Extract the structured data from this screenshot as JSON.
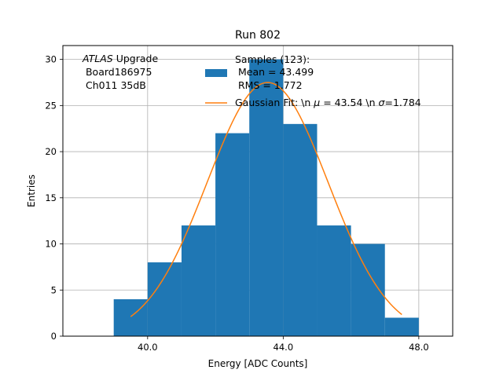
{
  "chart_data": {
    "type": "bar",
    "title": "Run 802",
    "xlabel": "Energy [ADC Counts]",
    "ylabel": "Entries",
    "xlim": [
      37.5,
      49.0
    ],
    "ylim": [
      0,
      31.5
    ],
    "grid": true,
    "x_ticks": [
      40.0,
      44.0,
      48.0
    ],
    "x_tick_labels": [
      "40.0",
      "44.0",
      "48.0"
    ],
    "y_ticks": [
      0,
      5,
      10,
      15,
      20,
      25,
      30
    ],
    "y_tick_labels": [
      "0",
      "5",
      "10",
      "15",
      "20",
      "25",
      "30"
    ],
    "bin_edges": [
      39,
      40,
      41,
      42,
      43,
      44,
      45,
      46,
      47,
      48
    ],
    "values": [
      4,
      8,
      12,
      22,
      30,
      23,
      12,
      10,
      2
    ],
    "histogram_color": "#1f77b4",
    "fit": {
      "mu": 43.54,
      "sigma": 1.784,
      "amplitude": 27.5,
      "x_range": [
        39.5,
        47.5
      ],
      "color": "#ff7f0e"
    },
    "annotation": {
      "line1_italic": "ATLAS",
      "line1_rest": " Upgrade",
      "line2": " Board186975",
      "line3": " Ch011 35dB"
    },
    "legend": {
      "placement": "top-center",
      "histogram_lines": [
        "Samples (123):",
        " Mean = 43.499",
        " RMS = 1.772"
      ],
      "fit_label_prefix": "Gaussian Fit: \\n ",
      "fit_label_mu": "μ",
      "fit_label_mid": " = 43.54 \\n ",
      "fit_label_sigma": "σ",
      "fit_label_end": "=1.784"
    }
  }
}
